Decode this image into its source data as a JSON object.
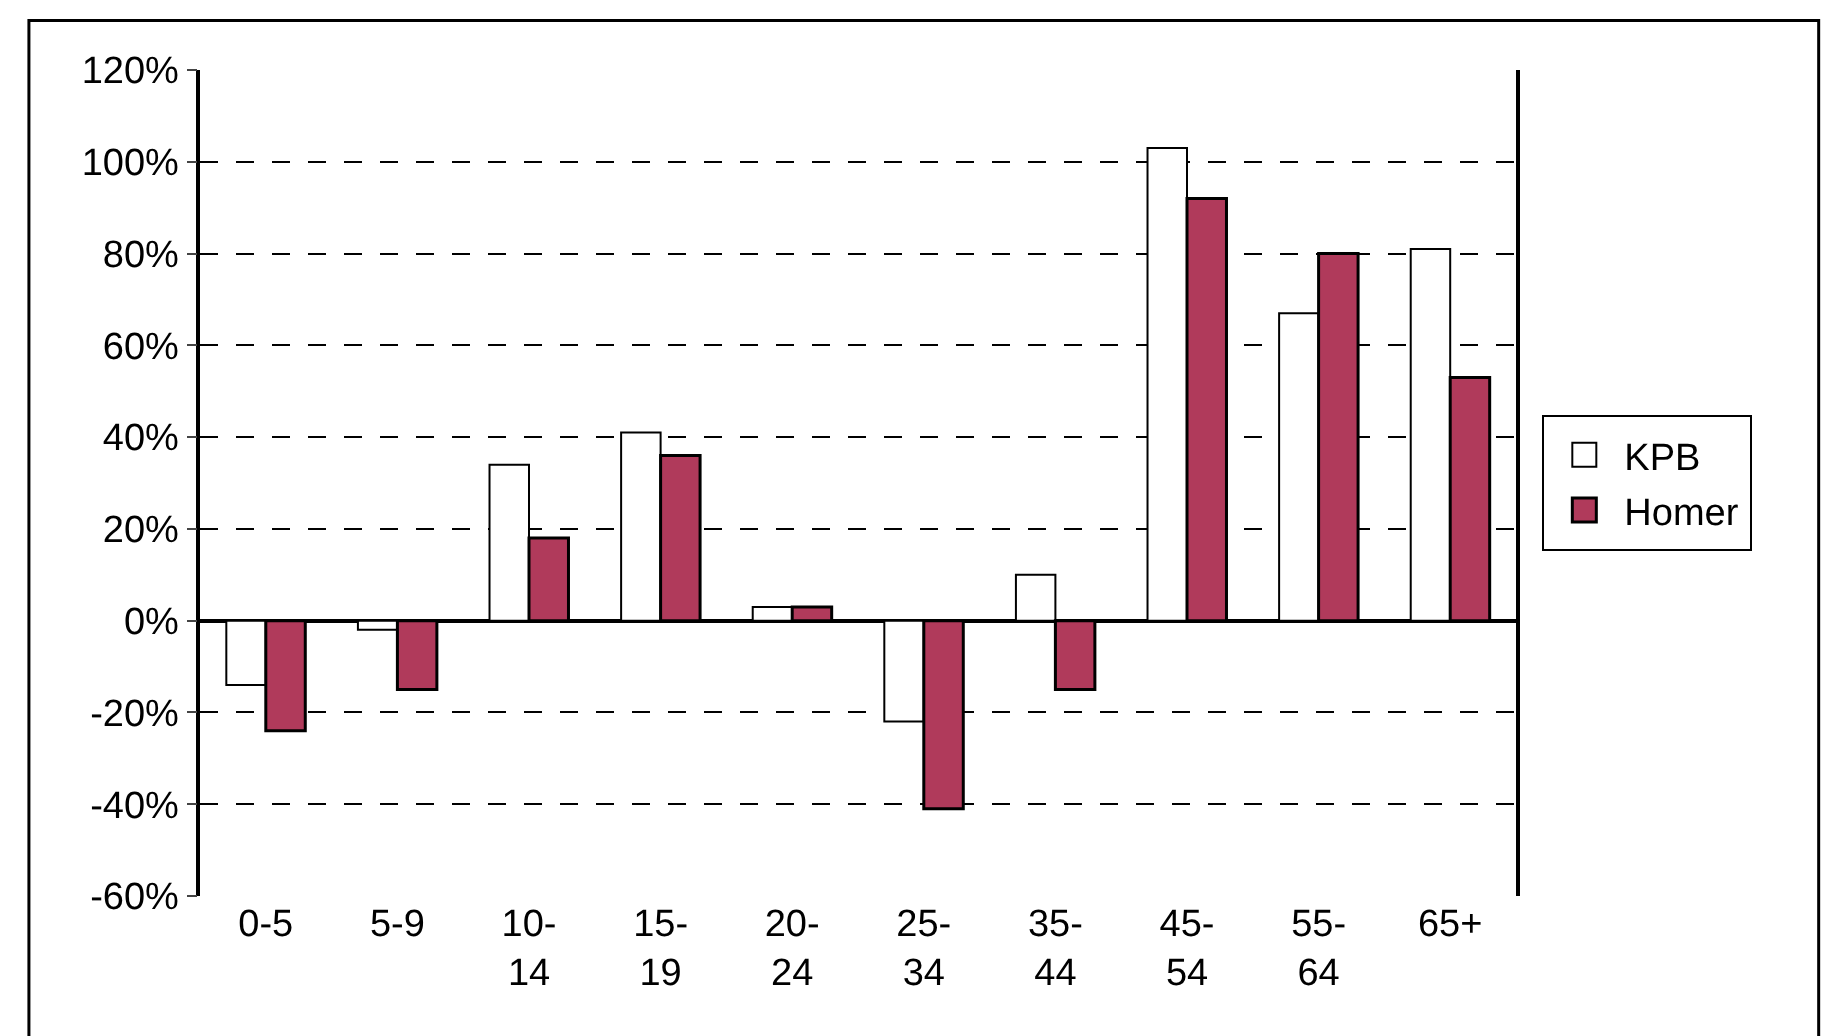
{
  "chart_data": {
    "type": "bar",
    "categories": [
      "0-5",
      "5-9",
      "10-\n14",
      "15-\n19",
      "20-\n24",
      "25-\n34",
      "35-\n44",
      "45-\n54",
      "55-\n64",
      "65+"
    ],
    "series": [
      {
        "name": "KPB",
        "color": "#ffffff",
        "values": [
          -14,
          -2,
          34,
          41,
          3,
          -22,
          10,
          103,
          67,
          81
        ]
      },
      {
        "name": "Homer",
        "color": "#b03a5b",
        "values": [
          -24,
          -15,
          18,
          36,
          3,
          -41,
          -15,
          92,
          80,
          53
        ]
      }
    ],
    "ylim": [
      -60,
      120
    ],
    "yticks": [
      {
        "value": -60,
        "label": "-60%"
      },
      {
        "value": -40,
        "label": "-40%"
      },
      {
        "value": -20,
        "label": "-20%"
      },
      {
        "value": 0,
        "label": "0%"
      },
      {
        "value": 20,
        "label": "20%"
      },
      {
        "value": 40,
        "label": "40%"
      },
      {
        "value": 60,
        "label": "60%"
      },
      {
        "value": 80,
        "label": "80%"
      },
      {
        "value": 100,
        "label": "100%"
      },
      {
        "value": 120,
        "label": "120%"
      }
    ],
    "grid": "y",
    "legend": "right"
  }
}
